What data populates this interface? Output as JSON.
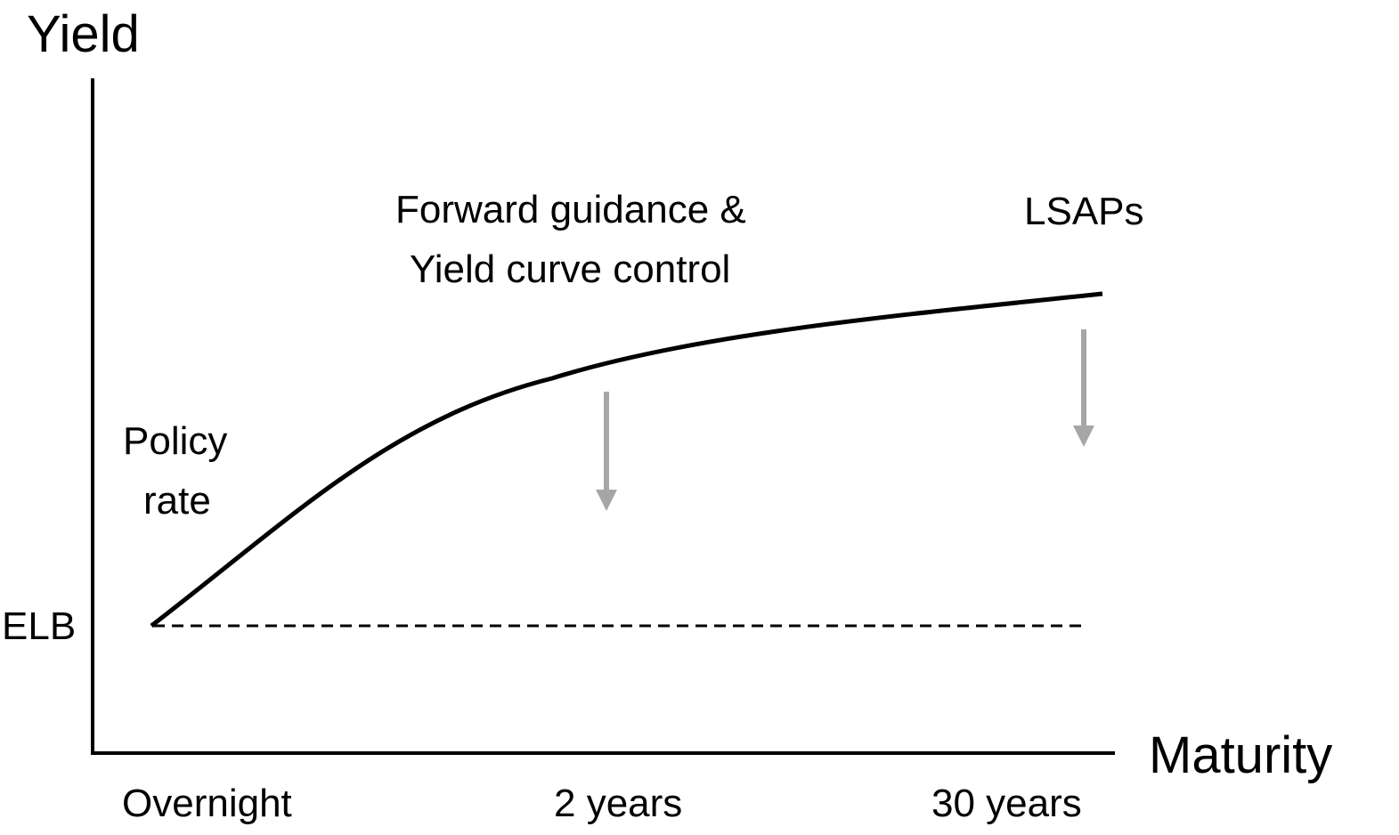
{
  "axes": {
    "y_title": "Yield",
    "x_title": "Maturity"
  },
  "x_ticks": [
    "Overnight",
    "2 years",
    "30 years"
  ],
  "elb_label": "ELB",
  "annotations": {
    "policy_rate": [
      "Policy",
      "rate"
    ],
    "forward_guidance": [
      "Forward guidance &",
      "Yield curve control"
    ],
    "lsaps": "LSAPs"
  },
  "colors": {
    "curve": "#000000",
    "axis": "#000000",
    "elb_line": "#000000",
    "arrows": "#a6a6a6",
    "background": "#ffffff"
  }
}
